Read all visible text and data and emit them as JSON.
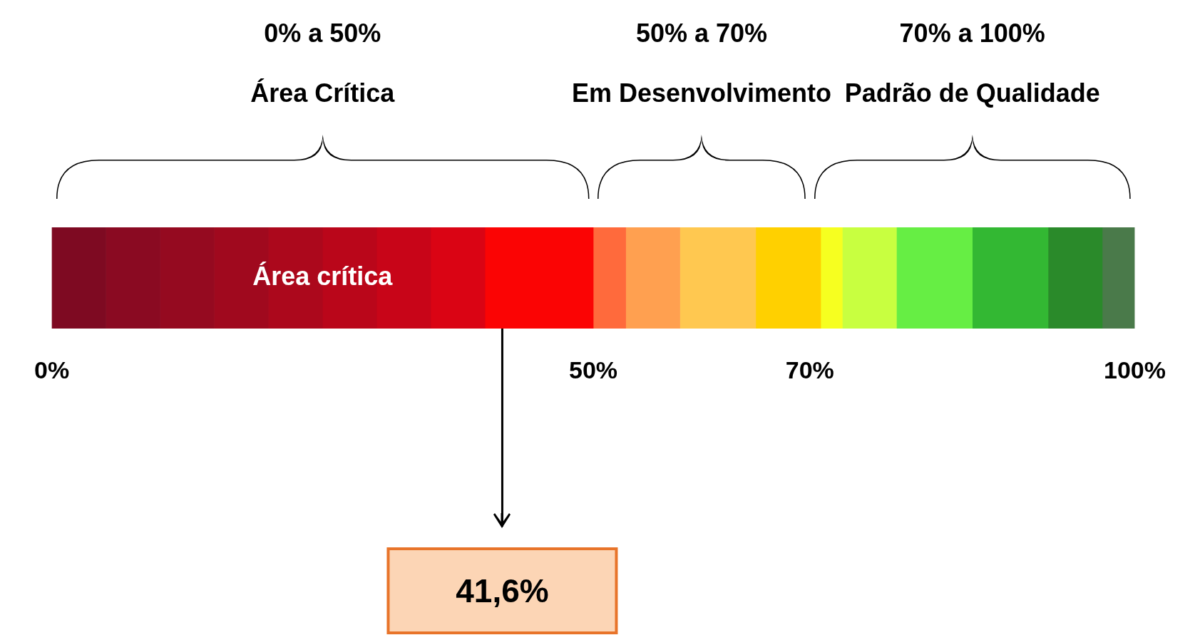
{
  "chart_data": {
    "type": "bar",
    "orientation": "horizontal",
    "stacked": true,
    "categories": [
      null
    ],
    "series": [
      {
        "color": "#7e0a22",
        "values": [
          5
        ]
      },
      {
        "color": "#8a0a22",
        "values": [
          5
        ]
      },
      {
        "color": "#950a20",
        "values": [
          5
        ]
      },
      {
        "color": "#a0091e",
        "values": [
          5
        ]
      },
      {
        "color": "#ac081c",
        "values": [
          5
        ]
      },
      {
        "color": "#ba061a",
        "values": [
          5
        ]
      },
      {
        "color": "#c80518",
        "values": [
          5
        ]
      },
      {
        "color": "#da0414",
        "values": [
          5
        ]
      },
      {
        "color": "#fb0404",
        "values": [
          10
        ]
      },
      {
        "color": "#ff6a3c",
        "values": [
          3
        ]
      },
      {
        "color": "#ffa050",
        "values": [
          5
        ]
      },
      {
        "color": "#ffc850",
        "values": [
          7
        ]
      },
      {
        "color": "#ffd000",
        "values": [
          6
        ]
      },
      {
        "color": "#f6ff20",
        "values": [
          2
        ]
      },
      {
        "color": "#c8ff40",
        "values": [
          5
        ]
      },
      {
        "color": "#66ee44",
        "values": [
          7
        ]
      },
      {
        "color": "#33b833",
        "values": [
          7
        ]
      },
      {
        "color": "#2a8a2a",
        "values": [
          5
        ]
      },
      {
        "color": "#4a7a4a",
        "values": [
          3
        ]
      }
    ],
    "xlim": [
      0,
      100
    ],
    "xticks": [
      {
        "value": 0,
        "label": "0%"
      },
      {
        "value": 50,
        "label": "50%"
      },
      {
        "value": 70,
        "label": "70%"
      },
      {
        "value": 100,
        "label": "100%"
      }
    ],
    "annotations": [
      "0% a 50%",
      "Área Crítica",
      "50% a 70%",
      "Em Desenvolvimento",
      "70% a 100%",
      "Padrão de Qualidade",
      "Área crítica"
    ],
    "ref_lines": [
      {
        "axis": "x",
        "value": 41.6,
        "label": "41,6%"
      }
    ]
  }
}
